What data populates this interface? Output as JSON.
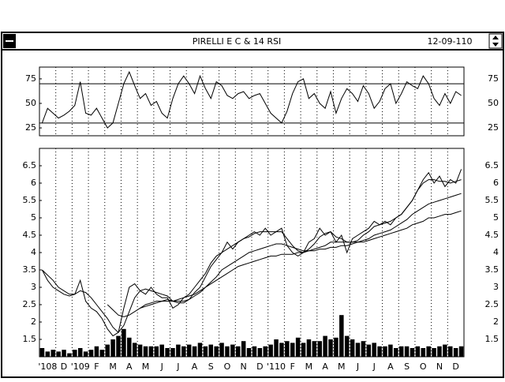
{
  "window": {
    "title": "PIRELLI E C & 14 RSI",
    "date": "12-09-110"
  },
  "chart_data": [
    {
      "type": "line",
      "ylim": [
        17,
        87
      ],
      "yticks": [
        25,
        50,
        75
      ],
      "reference_lines": [
        30,
        70
      ],
      "series": [
        {
          "color": "#000000",
          "values": [
            30,
            45,
            40,
            35,
            38,
            42,
            48,
            72,
            40,
            38,
            45,
            35,
            25,
            30,
            50,
            70,
            82,
            68,
            55,
            60,
            48,
            52,
            40,
            35,
            55,
            70,
            78,
            70,
            60,
            78,
            65,
            55,
            72,
            68,
            58,
            55,
            60,
            62,
            55,
            58,
            60,
            50,
            40,
            35,
            30,
            42,
            60,
            72,
            75,
            55,
            60,
            50,
            45,
            62,
            40,
            55,
            65,
            60,
            52,
            68,
            60,
            45,
            52,
            65,
            70,
            50,
            60,
            72,
            68,
            65,
            78,
            70,
            55,
            48,
            60,
            50,
            62,
            58
          ]
        }
      ]
    },
    {
      "type": "line",
      "ylim": [
        1,
        7
      ],
      "yticks": [
        1.5,
        2,
        2.5,
        3,
        3.5,
        4,
        4.5,
        5,
        5.5,
        6,
        6.5
      ],
      "categories": [
        "'108",
        null,
        null,
        "D",
        null,
        null,
        "'109",
        null,
        null,
        "F",
        null,
        null,
        "M",
        null,
        null,
        "A",
        null,
        null,
        "M",
        null,
        null,
        "J",
        null,
        null,
        "J",
        null,
        null,
        "A",
        null,
        null,
        "S",
        null,
        null,
        "O",
        null,
        null,
        "N",
        null,
        null,
        "D",
        null,
        null,
        "'110",
        null,
        null,
        "F",
        null,
        null,
        "M",
        null,
        null,
        "A",
        null,
        null,
        "M",
        null,
        null,
        "J",
        null,
        null,
        "J",
        null,
        null,
        "A",
        null,
        null,
        "S",
        null,
        null,
        "O",
        null,
        null,
        "N",
        null,
        null,
        "D",
        null,
        null
      ],
      "xgrid": true,
      "series": [
        {
          "color": "#000000",
          "values": [
            3.5,
            3.2,
            3.0,
            2.9,
            2.8,
            2.75,
            2.8,
            3.2,
            2.6,
            2.4,
            2.3,
            2.1,
            1.8,
            1.6,
            1.7,
            2.4,
            3.0,
            3.1,
            2.9,
            2.8,
            3.0,
            2.8,
            2.7,
            2.7,
            2.4,
            2.5,
            2.7,
            2.8,
            3.0,
            3.2,
            3.4,
            3.7,
            3.9,
            4.0,
            4.3,
            4.1,
            4.3,
            4.4,
            4.5,
            4.6,
            4.5,
            4.7,
            4.5,
            4.6,
            4.7,
            4.2,
            4.0,
            3.9,
            4.0,
            4.3,
            4.4,
            4.7,
            4.5,
            4.6,
            4.3,
            4.5,
            4.0,
            4.4,
            4.5,
            4.6,
            4.7,
            4.9,
            4.8,
            4.9,
            4.8,
            5.0,
            5.1,
            5.3,
            5.5,
            5.8,
            6.1,
            6.3,
            6.0,
            6.2,
            5.9,
            6.1,
            6.0,
            6.4
          ]
        },
        {
          "color": "#000000",
          "values": [
            3.5,
            3.35,
            3.2,
            3.0,
            2.9,
            2.8,
            2.8,
            2.9,
            2.85,
            2.7,
            2.5,
            2.3,
            2.1,
            1.85,
            1.7,
            1.9,
            2.3,
            2.7,
            2.9,
            2.95,
            2.9,
            2.85,
            2.8,
            2.75,
            2.6,
            2.55,
            2.55,
            2.65,
            2.85,
            3.0,
            3.3,
            3.6,
            3.8,
            4.0,
            4.1,
            4.2,
            4.3,
            4.4,
            4.45,
            4.55,
            4.6,
            4.6,
            4.6,
            4.6,
            4.6,
            4.4,
            4.2,
            4.05,
            4.0,
            4.1,
            4.25,
            4.45,
            4.55,
            4.6,
            4.45,
            4.4,
            4.3,
            4.3,
            4.35,
            4.5,
            4.6,
            4.75,
            4.8,
            4.85,
            4.9,
            5.0,
            5.1,
            5.3,
            5.5,
            5.8,
            6.0,
            6.1,
            6.1,
            6.05,
            6.05,
            6.0,
            6.05,
            6.1
          ]
        },
        {
          "color": "#000000",
          "values": [
            null,
            null,
            null,
            null,
            null,
            null,
            null,
            null,
            null,
            null,
            null,
            null,
            2.5,
            2.35,
            2.2,
            2.15,
            2.2,
            2.3,
            2.4,
            2.5,
            2.55,
            2.6,
            2.6,
            2.65,
            2.6,
            2.6,
            2.6,
            2.65,
            2.75,
            2.85,
            3.0,
            3.15,
            3.3,
            3.5,
            3.6,
            3.7,
            3.8,
            3.9,
            4.0,
            4.05,
            4.1,
            4.15,
            4.2,
            4.25,
            4.25,
            4.2,
            4.15,
            4.1,
            4.05,
            4.05,
            4.1,
            4.15,
            4.2,
            4.3,
            4.3,
            4.3,
            4.3,
            4.3,
            4.3,
            4.35,
            4.4,
            4.5,
            4.55,
            4.6,
            4.65,
            4.75,
            4.85,
            4.95,
            5.1,
            5.2,
            5.3,
            5.4,
            5.45,
            5.5,
            5.55,
            5.6,
            5.65,
            5.7
          ]
        },
        {
          "color": "#000000",
          "values": [
            null,
            null,
            null,
            null,
            null,
            null,
            null,
            null,
            null,
            null,
            null,
            null,
            null,
            null,
            null,
            null,
            null,
            null,
            2.4,
            2.45,
            2.5,
            2.55,
            2.6,
            2.6,
            2.6,
            2.65,
            2.7,
            2.75,
            2.8,
            2.9,
            3.0,
            3.1,
            3.2,
            3.3,
            3.4,
            3.5,
            3.6,
            3.65,
            3.7,
            3.75,
            3.8,
            3.85,
            3.9,
            3.9,
            3.95,
            3.95,
            3.95,
            4.0,
            4.0,
            4.05,
            4.05,
            4.1,
            4.1,
            4.15,
            4.15,
            4.2,
            4.2,
            4.25,
            4.3,
            4.3,
            4.35,
            4.4,
            4.45,
            4.5,
            4.55,
            4.6,
            4.65,
            4.7,
            4.8,
            4.85,
            4.9,
            5.0,
            5.0,
            5.05,
            5.1,
            5.1,
            5.15,
            5.2
          ]
        },
        {
          "type": "bar",
          "color": "#000000",
          "values": [
            1.25,
            1.15,
            1.2,
            1.15,
            1.2,
            1.1,
            1.2,
            1.25,
            1.15,
            1.2,
            1.3,
            1.2,
            1.35,
            1.5,
            1.6,
            1.8,
            1.55,
            1.4,
            1.35,
            1.3,
            1.3,
            1.3,
            1.35,
            1.25,
            1.25,
            1.35,
            1.3,
            1.35,
            1.3,
            1.4,
            1.3,
            1.35,
            1.3,
            1.4,
            1.3,
            1.35,
            1.3,
            1.45,
            1.25,
            1.3,
            1.25,
            1.3,
            1.35,
            1.5,
            1.4,
            1.45,
            1.4,
            1.55,
            1.4,
            1.5,
            1.45,
            1.45,
            1.6,
            1.5,
            1.55,
            2.2,
            1.6,
            1.5,
            1.4,
            1.45,
            1.35,
            1.4,
            1.3,
            1.3,
            1.35,
            1.25,
            1.3,
            1.3,
            1.25,
            1.3,
            1.25,
            1.3,
            1.25,
            1.3,
            1.35,
            1.3,
            1.25,
            1.3
          ]
        }
      ]
    }
  ]
}
